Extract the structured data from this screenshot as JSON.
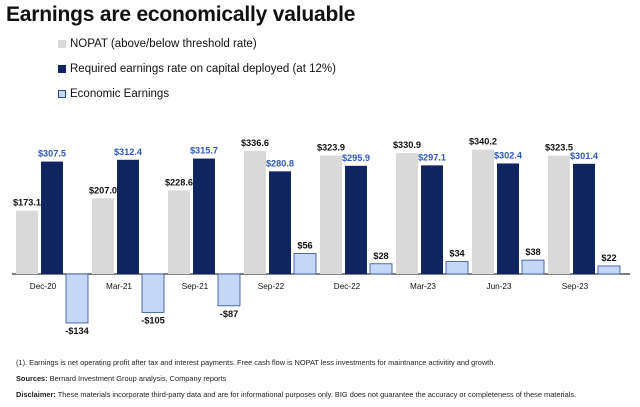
{
  "chart_data": {
    "type": "bar",
    "title": "Earnings are economically valuable",
    "categories": [
      "Dec-20",
      "Mar-21",
      "Sep-21",
      "Sep-22",
      "Dec-22",
      "Mar-23",
      "Jun-23",
      "Sep-23"
    ],
    "series": [
      {
        "name": "NOPAT (above/below threshold rate)",
        "key": "nopat",
        "color": "#d9d9d9",
        "label_color": "#111111",
        "values": [
          173.1,
          207.0,
          228.6,
          336.6,
          323.9,
          330.9,
          340.2,
          323.5
        ],
        "labels": [
          "$173.1",
          "$207.0",
          "$228.6",
          "$336.6",
          "$323.9",
          "$330.9",
          "$340.2",
          "$323.5"
        ]
      },
      {
        "name": "Required earnings rate on capital deployed (at 12%)",
        "key": "required",
        "color": "#0f2461",
        "label_color": "#2e58b6",
        "values": [
          307.5,
          312.4,
          315.7,
          280.8,
          295.9,
          297.1,
          302.4,
          301.4
        ],
        "labels": [
          "$307.5",
          "$312.4",
          "$315.7",
          "$280.8",
          "$295.9",
          "$297.1",
          "$302.4",
          "$301.4"
        ]
      },
      {
        "name": "Economic Earnings",
        "key": "economic",
        "color": "#c5d7f6",
        "border": "#2a4b96",
        "label_color": "#111111",
        "values": [
          -134,
          -105,
          -87,
          56,
          28,
          34,
          38,
          22
        ],
        "labels": [
          "-$134",
          "-$105",
          "-$87",
          "$56",
          "$28",
          "$34",
          "$38",
          "$22"
        ]
      }
    ],
    "ylim": [
      -140,
      370
    ],
    "grid": false,
    "legend_position": "top-left"
  },
  "footnotes": {
    "note": "(1). Earnings is net operating profit after tax and interest payments. Free cash flow is NOPAT less investments for maintnance activitity and growth.",
    "sources_label": "Sources:",
    "sources_text": " Bernard Investment Group analysis, Company reports",
    "disclaimer_label": "Disclaimer:",
    "disclaimer_text": " These materials incorporate third-party data and are for informational purposes only. BIG does not guarantee the accuracy or completeness of these materials."
  }
}
